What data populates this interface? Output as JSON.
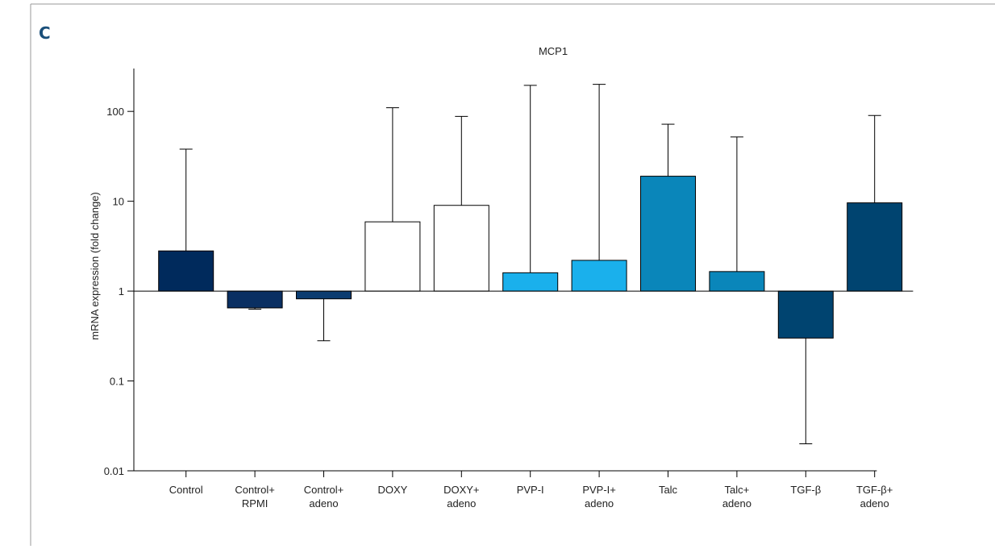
{
  "panel_label": "C",
  "chart_data": {
    "type": "bar",
    "title": "MCP1",
    "y_label": "mRNA expression (fold change)",
    "y_scale": "log",
    "categories": [
      "Control",
      "Control+\nRPMI",
      "Control+\nadeno",
      "DOXY",
      "DOXY+\nadeno",
      "PVP-I",
      "PVP-I+\nadeno",
      "Talc",
      "Talc+\nadeno",
      "TGF-β",
      "TGF-β+\nadeno"
    ],
    "values": [
      2.8,
      0.65,
      0.82,
      5.9,
      9,
      1.6,
      2.2,
      19,
      1.65,
      0.3,
      9.6
    ],
    "error_ends": [
      38,
      0.63,
      0.28,
      110,
      88,
      195,
      200,
      72,
      52,
      0.02,
      90
    ],
    "colors": [
      "#002a5c",
      "#0a2f62",
      "#0b3c70",
      "#ffffff",
      "#ffffff",
      "#1ab0ec",
      "#1ab0ec",
      "#0a86ba",
      "#0a86ba",
      "#004470",
      "#004470"
    ],
    "baseline": 1,
    "ylim": [
      0.01,
      300
    ],
    "yticks": [
      0.01,
      0.1,
      1,
      10,
      100
    ]
  }
}
